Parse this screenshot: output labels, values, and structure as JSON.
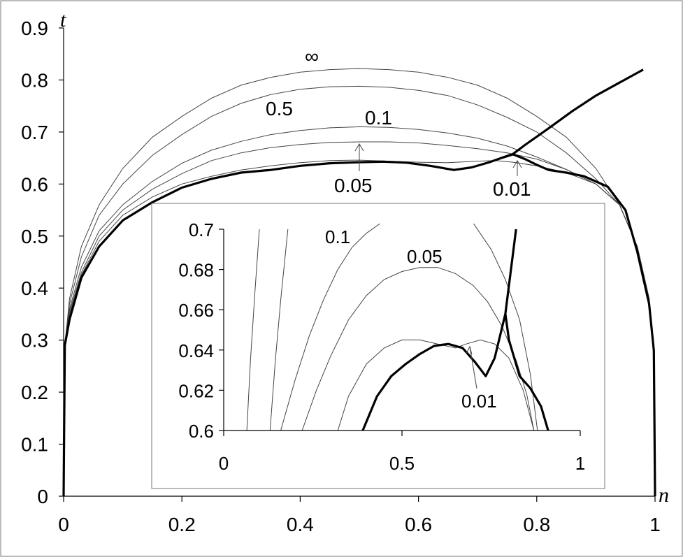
{
  "chart_data": [
    {
      "type": "line",
      "xlabel": "n",
      "ylabel": "t",
      "xlim": [
        0,
        1
      ],
      "ylim": [
        0,
        0.9
      ],
      "x_ticks": [
        "0",
        "0.2",
        "0.4",
        "0.6",
        "0.8",
        "1"
      ],
      "y_ticks": [
        "0",
        "0.1",
        "0.2",
        "0.3",
        "0.4",
        "0.5",
        "0.6",
        "0.7",
        "0.8",
        "0.9"
      ],
      "grid": false,
      "series": [
        {
          "name": "∞",
          "x": [
            0,
            0.002,
            0.01,
            0.03,
            0.06,
            0.1,
            0.15,
            0.2,
            0.25,
            0.3,
            0.35,
            0.4,
            0.45,
            0.5,
            0.55,
            0.6,
            0.65,
            0.7,
            0.75,
            0.8,
            0.85,
            0.9,
            0.94,
            0.97,
            0.99,
            0.998,
            1
          ],
          "y": [
            0,
            0.29,
            0.38,
            0.48,
            0.56,
            0.63,
            0.69,
            0.73,
            0.765,
            0.79,
            0.805,
            0.815,
            0.82,
            0.822,
            0.82,
            0.815,
            0.805,
            0.79,
            0.765,
            0.73,
            0.69,
            0.63,
            0.56,
            0.48,
            0.38,
            0.29,
            0
          ]
        },
        {
          "name": "0.5",
          "x": [
            0,
            0.002,
            0.01,
            0.03,
            0.06,
            0.1,
            0.15,
            0.2,
            0.25,
            0.3,
            0.35,
            0.4,
            0.45,
            0.5,
            0.55,
            0.6,
            0.65,
            0.7,
            0.75,
            0.8,
            0.85,
            0.9,
            0.94,
            0.97,
            0.99,
            0.998,
            1
          ],
          "y": [
            0,
            0.29,
            0.37,
            0.46,
            0.54,
            0.6,
            0.655,
            0.695,
            0.73,
            0.755,
            0.772,
            0.782,
            0.787,
            0.788,
            0.786,
            0.78,
            0.77,
            0.752,
            0.728,
            0.7,
            0.66,
            0.61,
            0.56,
            0.48,
            0.38,
            0.29,
            0
          ]
        },
        {
          "name": "0.1",
          "x": [
            0,
            0.002,
            0.01,
            0.03,
            0.06,
            0.1,
            0.15,
            0.2,
            0.25,
            0.3,
            0.35,
            0.4,
            0.45,
            0.5,
            0.55,
            0.6,
            0.65,
            0.7,
            0.75,
            0.8,
            0.85,
            0.9,
            0.94,
            0.97,
            0.99,
            0.998,
            1
          ],
          "y": [
            0,
            0.29,
            0.36,
            0.44,
            0.51,
            0.56,
            0.605,
            0.64,
            0.665,
            0.682,
            0.695,
            0.703,
            0.708,
            0.71,
            0.709,
            0.705,
            0.698,
            0.688,
            0.673,
            0.652,
            0.628,
            0.6,
            0.56,
            0.48,
            0.38,
            0.29,
            0
          ]
        },
        {
          "name": "0.05",
          "x": [
            0,
            0.002,
            0.01,
            0.03,
            0.06,
            0.1,
            0.15,
            0.2,
            0.25,
            0.3,
            0.35,
            0.4,
            0.45,
            0.5,
            0.55,
            0.6,
            0.65,
            0.7,
            0.75,
            0.8,
            0.85,
            0.9,
            0.94,
            0.97,
            0.99,
            0.998,
            1
          ],
          "y": [
            0,
            0.29,
            0.355,
            0.43,
            0.5,
            0.55,
            0.59,
            0.62,
            0.645,
            0.66,
            0.67,
            0.676,
            0.68,
            0.681,
            0.681,
            0.679,
            0.674,
            0.668,
            0.66,
            0.648,
            0.628,
            0.6,
            0.56,
            0.48,
            0.38,
            0.29,
            0
          ]
        },
        {
          "name": "0.01",
          "x": [
            0,
            0.002,
            0.01,
            0.03,
            0.06,
            0.1,
            0.15,
            0.2,
            0.25,
            0.3,
            0.35,
            0.4,
            0.45,
            0.5,
            0.55,
            0.6,
            0.65,
            0.7,
            0.73,
            0.76,
            0.8,
            0.85,
            0.9,
            0.94,
            0.97,
            0.99,
            0.998,
            1
          ],
          "y": [
            0,
            0.29,
            0.35,
            0.425,
            0.49,
            0.54,
            0.575,
            0.6,
            0.615,
            0.627,
            0.635,
            0.641,
            0.645,
            0.646,
            0.644,
            0.642,
            0.641,
            0.644,
            0.645,
            0.642,
            0.635,
            0.622,
            0.6,
            0.56,
            0.48,
            0.38,
            0.29,
            0
          ]
        },
        {
          "name": "",
          "x": [
            0,
            0.002,
            0.01,
            0.03,
            0.06,
            0.1,
            0.15,
            0.2,
            0.25,
            0.3,
            0.35,
            0.4,
            0.45,
            0.5,
            0.54,
            0.58,
            0.62,
            0.66,
            0.69,
            0.72,
            0.74,
            0.76,
            0.78,
            0.82,
            0.86,
            0.9,
            0.94,
            0.98
          ],
          "y": [
            0,
            0.29,
            0.34,
            0.42,
            0.48,
            0.53,
            0.565,
            0.593,
            0.61,
            0.622,
            0.627,
            0.635,
            0.64,
            0.642,
            0.643,
            0.641,
            0.635,
            0.627,
            0.632,
            0.642,
            0.65,
            0.658,
            0.675,
            0.707,
            0.74,
            0.77,
            0.795,
            0.82
          ]
        },
        {
          "name": "",
          "x": [
            0.74,
            0.76,
            0.78,
            0.8,
            0.82,
            0.85,
            0.88,
            0.92,
            0.95,
            0.97,
            0.99,
            0.998,
            1
          ],
          "y": [
            0.65,
            0.657,
            0.648,
            0.637,
            0.627,
            0.622,
            0.615,
            0.595,
            0.55,
            0.47,
            0.37,
            0.28,
            0
          ]
        }
      ],
      "annotations": [
        "∞",
        "0.5",
        "0.1",
        "0.05",
        "0.01"
      ]
    },
    {
      "type": "line",
      "xlim": [
        0,
        1
      ],
      "ylim": [
        0.6,
        0.7
      ],
      "x_ticks": [
        "0",
        "0.5",
        "1"
      ],
      "y_ticks": [
        "0.6",
        "0.62",
        "0.64",
        "0.66",
        "0.68",
        "0.7"
      ],
      "grid": false,
      "series": [
        {
          "name": "",
          "x": [
            0.065,
            0.075,
            0.088,
            0.1
          ],
          "y": [
            0.6,
            0.635,
            0.67,
            0.7
          ]
        },
        {
          "name": "",
          "x": [
            0.13,
            0.145,
            0.16,
            0.18
          ],
          "y": [
            0.6,
            0.635,
            0.665,
            0.7
          ]
        },
        {
          "name": "0.1",
          "x": [
            0.16,
            0.2,
            0.24,
            0.28,
            0.32,
            0.36,
            0.4,
            0.44,
            0.48,
            0.5
          ],
          "y": [
            0.6,
            0.625,
            0.647,
            0.665,
            0.68,
            0.691,
            0.698,
            0.703,
            0.706,
            0.707
          ]
        },
        {
          "name": "0.1",
          "x": [
            0.7,
            0.75,
            0.79,
            0.83,
            0.86,
            0.88
          ],
          "y": [
            0.703,
            0.69,
            0.675,
            0.655,
            0.628,
            0.6
          ]
        },
        {
          "name": "0.05",
          "x": [
            0.22,
            0.26,
            0.3,
            0.35,
            0.4,
            0.45,
            0.5,
            0.55,
            0.6,
            0.65,
            0.7,
            0.74,
            0.78,
            0.82,
            0.85,
            0.87
          ],
          "y": [
            0.6,
            0.62,
            0.637,
            0.655,
            0.667,
            0.675,
            0.679,
            0.681,
            0.681,
            0.678,
            0.672,
            0.664,
            0.652,
            0.635,
            0.618,
            0.6
          ]
        },
        {
          "name": "0.01",
          "x": [
            0.32,
            0.35,
            0.4,
            0.45,
            0.5,
            0.55,
            0.6,
            0.65,
            0.68,
            0.72,
            0.76,
            0.8,
            0.84,
            0.87
          ],
          "y": [
            0.6,
            0.617,
            0.633,
            0.641,
            0.645,
            0.645,
            0.643,
            0.641,
            0.643,
            0.645,
            0.643,
            0.636,
            0.62,
            0.6
          ]
        },
        {
          "name": "",
          "x": [
            0.39,
            0.43,
            0.47,
            0.51,
            0.55,
            0.59,
            0.63,
            0.67,
            0.705,
            0.735,
            0.76,
            0.79,
            0.82
          ],
          "y": [
            0.6,
            0.617,
            0.627,
            0.633,
            0.638,
            0.642,
            0.643,
            0.641,
            0.634,
            0.627,
            0.636,
            0.658,
            0.7
          ]
        },
        {
          "name": "",
          "x": [
            0.79,
            0.8,
            0.83,
            0.86,
            0.89,
            0.91
          ],
          "y": [
            0.658,
            0.645,
            0.627,
            0.621,
            0.612,
            0.6
          ]
        }
      ],
      "annotations": [
        "0.1",
        "0.05",
        "0.01"
      ]
    }
  ]
}
